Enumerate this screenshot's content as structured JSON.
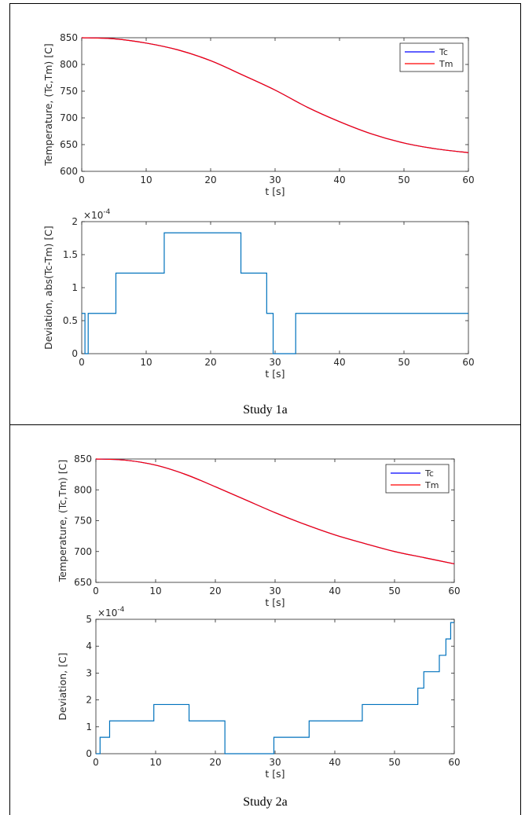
{
  "colors": {
    "tc": "#0000ff",
    "tm": "#ff0000",
    "deviation": "#0072bd",
    "axis": "#262626"
  },
  "figures": [
    {
      "caption": "Study 1a",
      "temp_plot": {
        "ylabel": "Temperature, (Tc,Tm) [C]",
        "xlabel": "t [s]",
        "xticks": [
          "0",
          "10",
          "20",
          "30",
          "40",
          "50",
          "60"
        ],
        "yticks": [
          "600",
          "650",
          "700",
          "750",
          "800",
          "850"
        ],
        "legend": [
          "Tc",
          "Tm"
        ]
      },
      "dev_plot": {
        "ylabel": "Deviation, abs(Tc-Tm) [C]",
        "xlabel": "t [s]",
        "xticks": [
          "0",
          "10",
          "20",
          "30",
          "40",
          "50",
          "60"
        ],
        "yticks": [
          "0",
          "0.5",
          "1",
          "1.5",
          "2"
        ],
        "exponent_base": "×10",
        "exponent_power": "-4"
      }
    },
    {
      "caption": "Study 2a",
      "temp_plot": {
        "ylabel": "Temperature, (Tc,Tm) [C]",
        "xlabel": "t [s]",
        "xticks": [
          "0",
          "10",
          "20",
          "30",
          "40",
          "50",
          "60"
        ],
        "yticks": [
          "650",
          "700",
          "750",
          "800",
          "850"
        ],
        "legend": [
          "Tc",
          "Tm"
        ]
      },
      "dev_plot": {
        "ylabel": "Deviation, [C]",
        "xlabel": "t [s]",
        "xticks": [
          "0",
          "10",
          "20",
          "30",
          "40",
          "50",
          "60"
        ],
        "yticks": [
          "0",
          "1",
          "2",
          "3",
          "4",
          "5"
        ],
        "exponent_base": "×10",
        "exponent_power": "-4"
      }
    }
  ],
  "chart_data": [
    {
      "type": "line",
      "title": "",
      "xlabel": "t [s]",
      "ylabel": "Temperature, (Tc,Tm) [C]",
      "xlim": [
        0,
        60
      ],
      "ylim": [
        600,
        850
      ],
      "legend_position": "top-right",
      "grid": false,
      "series": [
        {
          "name": "Tc",
          "x": [
            0,
            5,
            10,
            15,
            20,
            25,
            30,
            35,
            40,
            45,
            50,
            55,
            60
          ],
          "values": [
            850,
            848,
            840,
            827,
            807,
            780,
            752,
            720,
            693,
            670,
            653,
            642,
            635
          ]
        },
        {
          "name": "Tm",
          "x": [
            0,
            5,
            10,
            15,
            20,
            25,
            30,
            35,
            40,
            45,
            50,
            55,
            60
          ],
          "values": [
            850,
            848,
            840,
            827,
            807,
            780,
            752,
            720,
            693,
            670,
            653,
            642,
            635
          ]
        }
      ]
    },
    {
      "type": "line",
      "title": "",
      "xlabel": "t [s]",
      "ylabel": "Deviation, abs(Tc-Tm) [C]",
      "xlim": [
        0,
        60
      ],
      "ylim": [
        0,
        0.0002
      ],
      "grid": false,
      "series": [
        {
          "x": [
            0,
            0.5,
            0.5,
            1,
            1,
            5.3,
            5.3,
            12.8,
            12.8,
            24.7,
            24.7,
            28.7,
            28.7,
            29.7,
            29.7,
            33.2,
            33.2,
            60
          ],
          "values": [
            6.1e-05,
            6.1e-05,
            0,
            0,
            6.1e-05,
            6.1e-05,
            0.000122,
            0.000122,
            0.000183,
            0.000183,
            0.000122,
            0.000122,
            6.1e-05,
            6.1e-05,
            0,
            0,
            6.1e-05,
            6.1e-05
          ]
        }
      ]
    },
    {
      "type": "line",
      "title": "",
      "xlabel": "t [s]",
      "ylabel": "Temperature, (Tc,Tm) [C]",
      "xlim": [
        0,
        60
      ],
      "ylim": [
        650,
        850
      ],
      "legend_position": "top-right",
      "grid": false,
      "series": [
        {
          "name": "Tc",
          "x": [
            0,
            5,
            10,
            15,
            20,
            25,
            30,
            35,
            40,
            45,
            50,
            55,
            60
          ],
          "values": [
            850,
            848,
            840,
            825,
            805,
            784,
            763,
            744,
            727,
            713,
            700,
            690,
            680
          ]
        },
        {
          "name": "Tm",
          "x": [
            0,
            5,
            10,
            15,
            20,
            25,
            30,
            35,
            40,
            45,
            50,
            55,
            60
          ],
          "values": [
            850,
            848,
            840,
            825,
            805,
            784,
            763,
            744,
            727,
            713,
            700,
            690,
            680
          ]
        }
      ]
    },
    {
      "type": "line",
      "title": "",
      "xlabel": "t [s]",
      "ylabel": "Deviation, [C]",
      "xlim": [
        0,
        60
      ],
      "ylim": [
        0,
        0.0005
      ],
      "grid": false,
      "series": [
        {
          "x": [
            0,
            0.7,
            0.7,
            2.3,
            2.3,
            9.7,
            9.7,
            15.6,
            15.6,
            21.6,
            21.6,
            29.8,
            29.8,
            35.7,
            35.7,
            44.6,
            44.6,
            53.9,
            53.9,
            54.9,
            54.9,
            57.5,
            57.5,
            58.6,
            58.6,
            59.4,
            59.4,
            59.8,
            59.8,
            60
          ],
          "values": [
            0,
            0,
            6.1e-05,
            6.1e-05,
            0.000122,
            0.000122,
            0.000183,
            0.000183,
            0.000122,
            0.000122,
            0,
            0,
            6.1e-05,
            6.1e-05,
            0.000122,
            0.000122,
            0.000183,
            0.000183,
            0.000244,
            0.000244,
            0.000305,
            0.000305,
            0.000366,
            0.000366,
            0.000427,
            0.000427,
            0.000488,
            0.000488,
            0.000488,
            0.000488
          ]
        }
      ]
    }
  ]
}
